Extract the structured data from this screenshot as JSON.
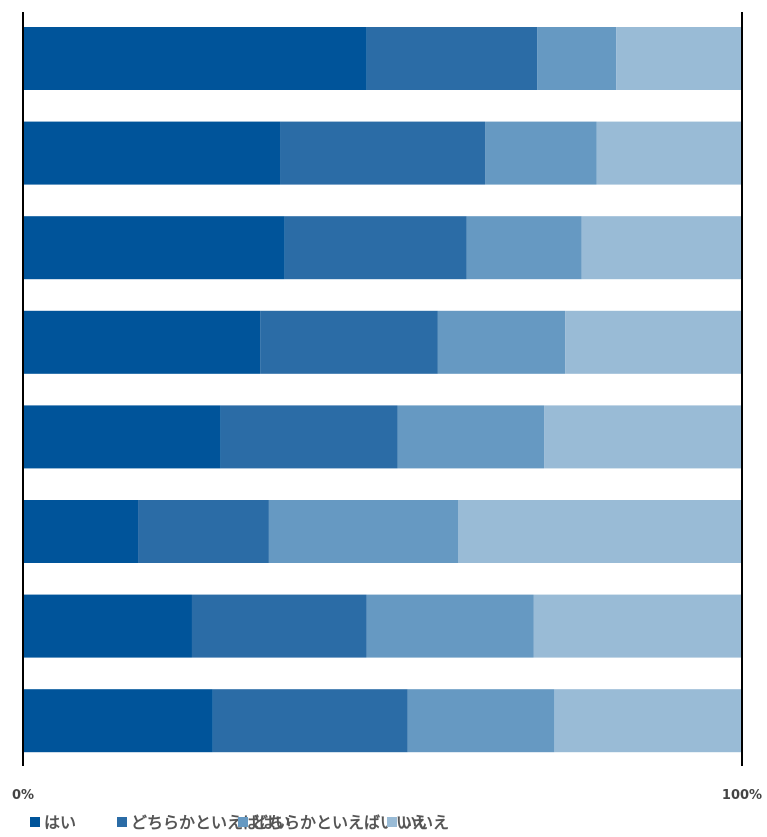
{
  "chart_data": {
    "type": "bar",
    "orientation": "horizontal",
    "stacked": true,
    "normalized": true,
    "title": "",
    "xlabel": "",
    "ylabel": "",
    "xlim": [
      0,
      100
    ],
    "x_tick_labels": [
      "0%",
      "100%"
    ],
    "grid": false,
    "legend_position": "bottom",
    "series": [
      {
        "name": "はい",
        "color": "#00549a",
        "values": [
          47.8,
          35.8,
          36.4,
          33.0,
          27.5,
          16.0,
          23.5,
          26.4
        ]
      },
      {
        "name": "どちらかといえばはい",
        "color": "#2b6ca6",
        "values": [
          23.7,
          28.5,
          25.3,
          24.7,
          24.6,
          18.2,
          24.3,
          27.1
        ]
      },
      {
        "name": "どちらかといえばいいえ",
        "color": "#6699c2",
        "values": [
          11.0,
          15.5,
          16.0,
          17.7,
          20.4,
          26.3,
          23.2,
          20.4
        ]
      },
      {
        "name": "いいえ",
        "color": "#99bbd6",
        "values": [
          17.5,
          20.2,
          22.3,
          24.6,
          27.5,
          39.5,
          29.0,
          26.1
        ]
      }
    ]
  }
}
